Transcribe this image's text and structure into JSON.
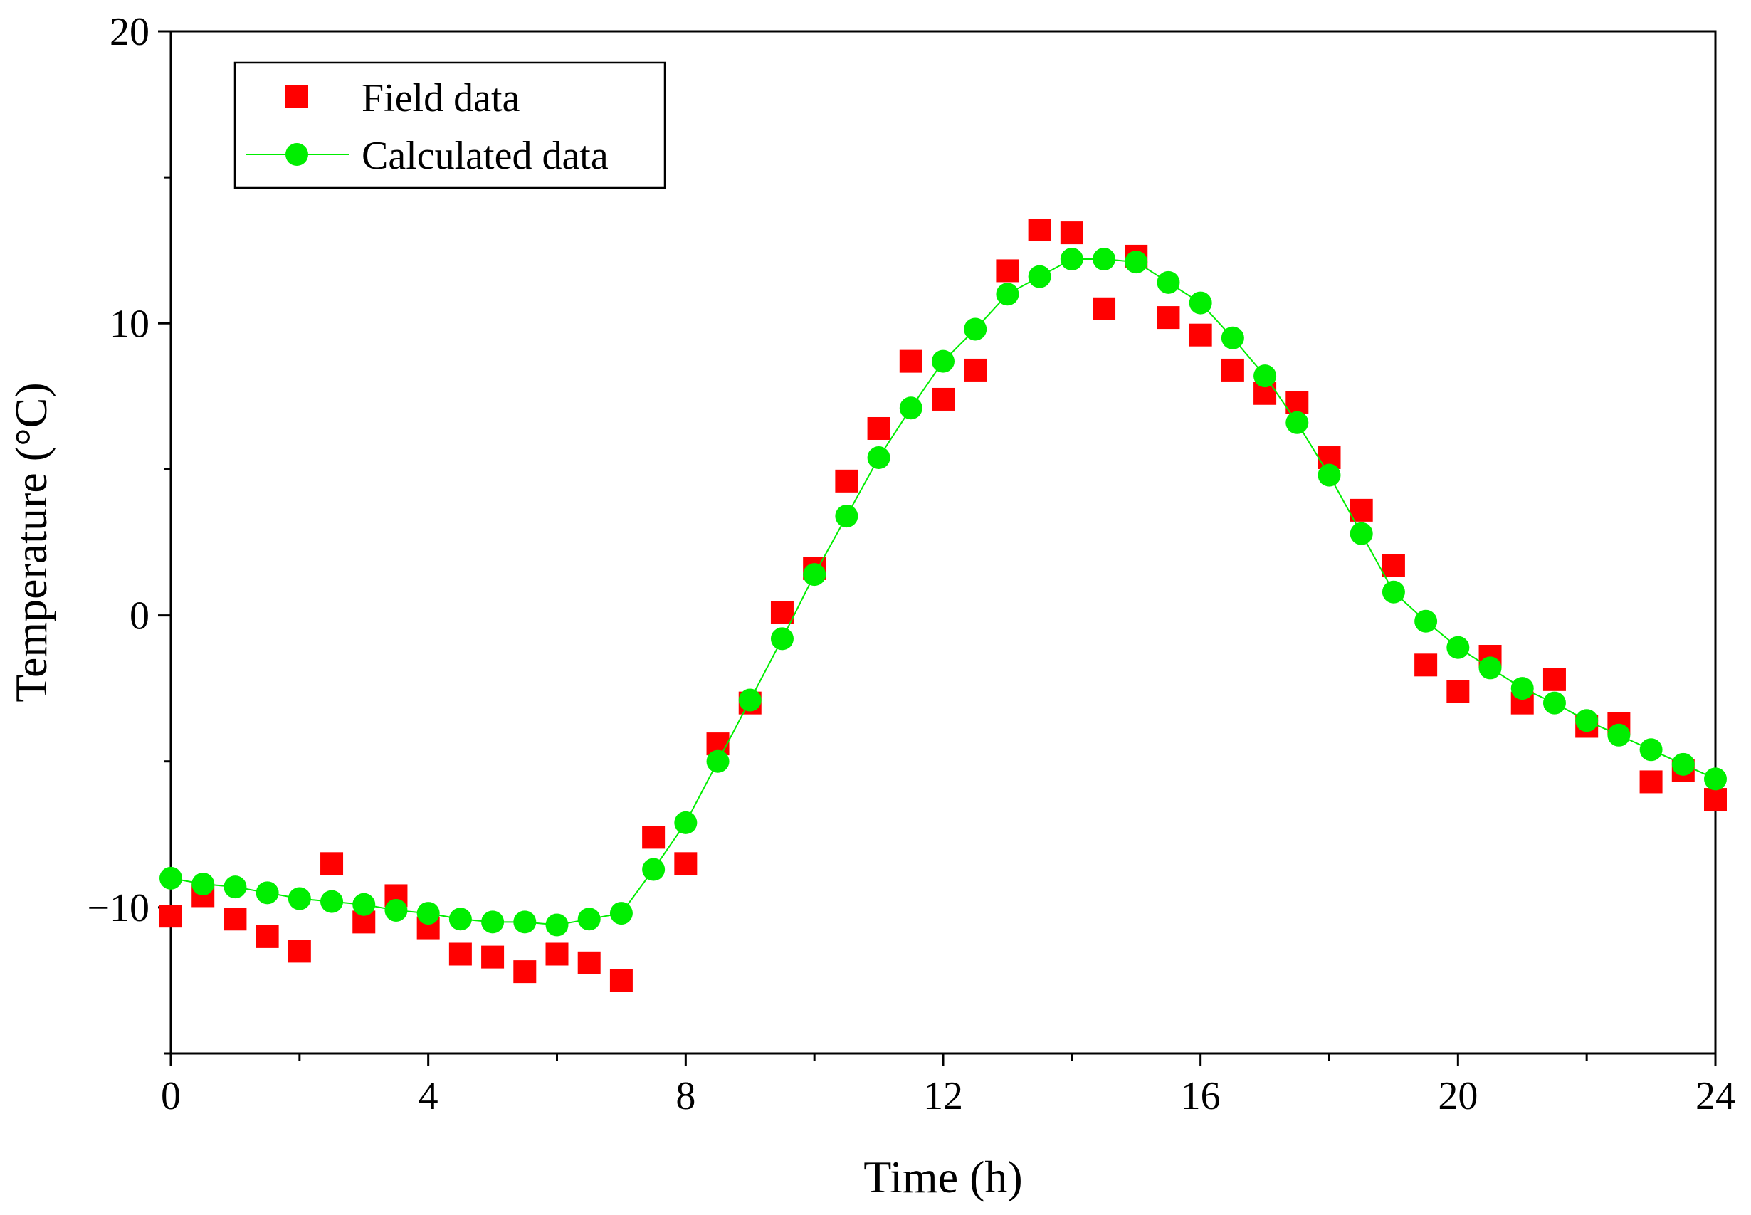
{
  "chart_data": {
    "type": "scatter",
    "title": "",
    "xlabel": "Time (h)",
    "ylabel": "Temperature (°C)",
    "xlim": [
      0,
      24
    ],
    "ylim": [
      -15,
      20
    ],
    "xticks": [
      0,
      4,
      8,
      12,
      16,
      20,
      24
    ],
    "yticks": [
      -10,
      0,
      10,
      20
    ],
    "xtick_labels": [
      "0",
      "4",
      "8",
      "12",
      "16",
      "20",
      "24"
    ],
    "ytick_labels": [
      "−10",
      "0",
      "10",
      "20"
    ],
    "grid": false,
    "legend_position": "top-left",
    "series": [
      {
        "name": "Field data",
        "marker": "square",
        "line": false,
        "color": "#ff0000",
        "x": [
          0,
          0.5,
          1,
          1.5,
          2,
          2.5,
          3,
          3.5,
          4,
          4.5,
          5,
          5.5,
          6,
          6.5,
          7,
          7.5,
          8,
          8.5,
          9,
          9.5,
          10,
          10.5,
          11,
          11.5,
          12,
          12.5,
          13,
          13.5,
          14,
          14.5,
          15,
          15.5,
          16,
          16.5,
          17,
          17.5,
          18,
          18.5,
          19,
          19.5,
          20,
          20.5,
          21,
          21.5,
          22,
          22.5,
          23,
          23.5,
          24
        ],
        "values": [
          -10.3,
          -9.6,
          -10.4,
          -11.0,
          -11.5,
          -8.5,
          -10.5,
          -9.6,
          -10.7,
          -11.6,
          -11.7,
          -12.2,
          -11.6,
          -11.9,
          -12.5,
          -7.6,
          -8.5,
          -4.4,
          -3.0,
          0.1,
          1.6,
          4.6,
          6.4,
          8.7,
          7.4,
          8.4,
          11.8,
          13.2,
          13.1,
          10.5,
          12.3,
          10.2,
          9.6,
          8.4,
          7.6,
          7.3,
          5.4,
          3.6,
          1.7,
          -1.7,
          -2.6,
          -1.4,
          -3.0,
          -2.2,
          -3.8,
          -3.7,
          -5.7,
          -5.3,
          -6.3
        ]
      },
      {
        "name": "Calculated data",
        "marker": "circle",
        "line": true,
        "color": "#00ee00",
        "x": [
          0,
          0.5,
          1,
          1.5,
          2,
          2.5,
          3,
          3.5,
          4,
          4.5,
          5,
          5.5,
          6,
          6.5,
          7,
          7.5,
          8,
          8.5,
          9,
          9.5,
          10,
          10.5,
          11,
          11.5,
          12,
          12.5,
          13,
          13.5,
          14,
          14.5,
          15,
          15.5,
          16,
          16.5,
          17,
          17.5,
          18,
          18.5,
          19,
          19.5,
          20,
          20.5,
          21,
          21.5,
          22,
          22.5,
          23,
          23.5,
          24
        ],
        "values": [
          -9.0,
          -9.2,
          -9.3,
          -9.5,
          -9.7,
          -9.8,
          -9.9,
          -10.1,
          -10.2,
          -10.4,
          -10.5,
          -10.5,
          -10.6,
          -10.4,
          -10.2,
          -8.7,
          -7.1,
          -5.0,
          -2.9,
          -0.8,
          1.4,
          3.4,
          5.4,
          7.1,
          8.7,
          9.8,
          11.0,
          11.6,
          12.2,
          12.2,
          12.1,
          11.4,
          10.7,
          9.5,
          8.2,
          6.6,
          4.8,
          2.8,
          0.8,
          -0.2,
          -1.1,
          -1.8,
          -2.5,
          -3.0,
          -3.6,
          -4.1,
          -4.6,
          -5.1,
          -5.6
        ]
      }
    ]
  }
}
